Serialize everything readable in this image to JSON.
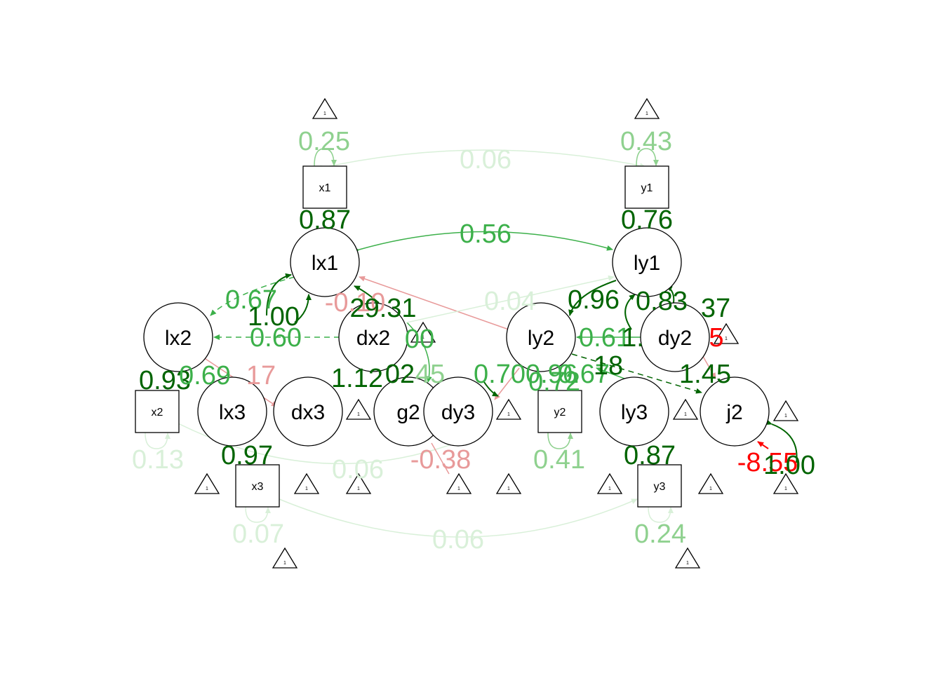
{
  "colors": {
    "background": "#ffffff",
    "node_stroke": "#000000",
    "dark_green": "#006400",
    "mid_green": "#3cb04a",
    "light_green": "#8fd18f",
    "pale_green": "#d9f0d9",
    "red": "#ff0000",
    "pale_red": "#e89a9a"
  },
  "latents": [
    {
      "id": "lx1",
      "label": "lx1"
    },
    {
      "id": "ly1",
      "label": "ly1"
    },
    {
      "id": "lx2",
      "label": "lx2"
    },
    {
      "id": "dx2",
      "label": "dx2"
    },
    {
      "id": "ly2",
      "label": "ly2"
    },
    {
      "id": "dy2",
      "label": "dy2"
    },
    {
      "id": "lx3",
      "label": "lx3"
    },
    {
      "id": "dx3",
      "label": "dx3"
    },
    {
      "id": "g2",
      "label": "g2"
    },
    {
      "id": "dy3",
      "label": "dy3"
    },
    {
      "id": "ly3",
      "label": "ly3"
    },
    {
      "id": "j2",
      "label": "j2"
    }
  ],
  "manifests": [
    {
      "id": "x1",
      "label": "x1"
    },
    {
      "id": "y1",
      "label": "y1"
    },
    {
      "id": "x2",
      "label": "x2"
    },
    {
      "id": "y2",
      "label": "y2"
    },
    {
      "id": "x3",
      "label": "x3"
    },
    {
      "id": "y3",
      "label": "y3"
    }
  ],
  "intercept_label": "1",
  "edge_labels": [
    {
      "text": "0.25",
      "tone": "light_green"
    },
    {
      "text": "0.43",
      "tone": "light_green"
    },
    {
      "text": "0.06",
      "tone": "pale_green"
    },
    {
      "text": "0.87",
      "tone": "dark_green"
    },
    {
      "text": "0.76",
      "tone": "dark_green"
    },
    {
      "text": "0.56",
      "tone": "mid_green"
    },
    {
      "text": "0.67",
      "tone": "mid_green"
    },
    {
      "text": "1.00",
      "tone": "dark_green"
    },
    {
      "text": "0.60",
      "tone": "mid_green"
    },
    {
      "text": "-0.10",
      "tone": "pale_red"
    },
    {
      "text": "29.31",
      "tone": "dark_green"
    },
    {
      "text": "0.04",
      "tone": "pale_green"
    },
    {
      "text": "0.96",
      "tone": "dark_green"
    },
    {
      "text": "0.83",
      "tone": "dark_green"
    },
    {
      "text": "37",
      "tone": "dark_green"
    },
    {
      "text": "00",
      "tone": "mid_green"
    },
    {
      "text": "0.61",
      "tone": "mid_green"
    },
    {
      "text": "1.",
      "tone": "dark_green"
    },
    {
      "text": "5",
      "tone": "red"
    },
    {
      "text": "0.93",
      "tone": "dark_green"
    },
    {
      "text": "0.69",
      "tone": "mid_green"
    },
    {
      "text": "17",
      "tone": "pale_red"
    },
    {
      "text": "1.12",
      "tone": "dark_green"
    },
    {
      "text": "02",
      "tone": "dark_green"
    },
    {
      "text": "45",
      "tone": "light_green"
    },
    {
      "text": "0.70",
      "tone": "mid_green"
    },
    {
      "text": "0.96",
      "tone": "mid_green"
    },
    {
      "text": "0.72",
      "tone": "mid_green"
    },
    {
      "text": "0.67",
      "tone": "mid_green"
    },
    {
      "text": "18",
      "tone": "dark_green"
    },
    {
      "text": "1.45",
      "tone": "dark_green"
    },
    {
      "text": "0.13",
      "tone": "pale_green"
    },
    {
      "text": "0.97",
      "tone": "dark_green"
    },
    {
      "text": "0.06",
      "tone": "pale_green"
    },
    {
      "text": "-0.38",
      "tone": "pale_red"
    },
    {
      "text": "0.41",
      "tone": "light_green"
    },
    {
      "text": "0.87",
      "tone": "dark_green"
    },
    {
      "text": "-8.55",
      "tone": "red"
    },
    {
      "text": "1.00",
      "tone": "dark_green"
    },
    {
      "text": "0.07",
      "tone": "pale_green"
    },
    {
      "text": "0.06",
      "tone": "pale_green"
    },
    {
      "text": "0.24",
      "tone": "light_green"
    }
  ]
}
